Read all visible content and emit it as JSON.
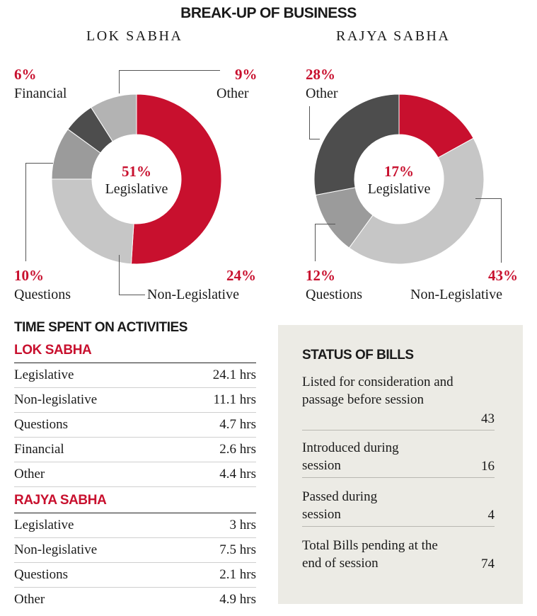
{
  "title": "BREAK-UP OF BUSINESS",
  "chart_data": [
    {
      "type": "pie",
      "title": "LOK SABHA",
      "slices": [
        {
          "label": "Legislative",
          "value": 51,
          "display": "51%",
          "color": "#c8102e"
        },
        {
          "label": "Non-Legislative",
          "value": 24,
          "display": "24%",
          "color": "#c6c6c6"
        },
        {
          "label": "Questions",
          "value": 10,
          "display": "10%",
          "color": "#9b9b9b"
        },
        {
          "label": "Financial",
          "value": 6,
          "display": "6%",
          "color": "#4d4d4d"
        },
        {
          "label": "Other",
          "value": 9,
          "display": "9%",
          "color": "#b3b3b3"
        }
      ]
    },
    {
      "type": "pie",
      "title": "RAJYA SABHA",
      "slices": [
        {
          "label": "Legislative",
          "value": 17,
          "display": "17%",
          "color": "#c8102e"
        },
        {
          "label": "Non-Legislative",
          "value": 43,
          "display": "43%",
          "color": "#c6c6c6"
        },
        {
          "label": "Questions",
          "value": 12,
          "display": "12%",
          "color": "#9b9b9b"
        },
        {
          "label": "Other",
          "value": 28,
          "display": "28%",
          "color": "#4d4d4d"
        }
      ]
    }
  ],
  "time_spent": {
    "title": "TIME SPENT ON ACTIVITIES",
    "lok_sabha": {
      "heading": "LOK SABHA",
      "rows": [
        {
          "label": "Legislative",
          "value": "24.1 hrs"
        },
        {
          "label": "Non-legislative",
          "value": "11.1 hrs"
        },
        {
          "label": "Questions",
          "value": "4.7 hrs"
        },
        {
          "label": "Financial",
          "value": "2.6 hrs"
        },
        {
          "label": "Other",
          "value": "4.4 hrs"
        }
      ]
    },
    "rajya_sabha": {
      "heading": "RAJYA SABHA",
      "rows": [
        {
          "label": "Legislative",
          "value": "3 hrs"
        },
        {
          "label": "Non-legislative",
          "value": "7.5 hrs"
        },
        {
          "label": "Questions",
          "value": "2.1 hrs"
        },
        {
          "label": "Other",
          "value": "4.9 hrs"
        }
      ]
    }
  },
  "status_of_bills": {
    "title": "STATUS OF BILLS",
    "rows": [
      {
        "label": "Listed for consideration and passage before session",
        "value": "43"
      },
      {
        "label": "Introduced during session",
        "value": "16"
      },
      {
        "label": "Passed during session",
        "value": "4"
      },
      {
        "label": "Total Bills pending at the end of session",
        "value": "74"
      }
    ]
  }
}
